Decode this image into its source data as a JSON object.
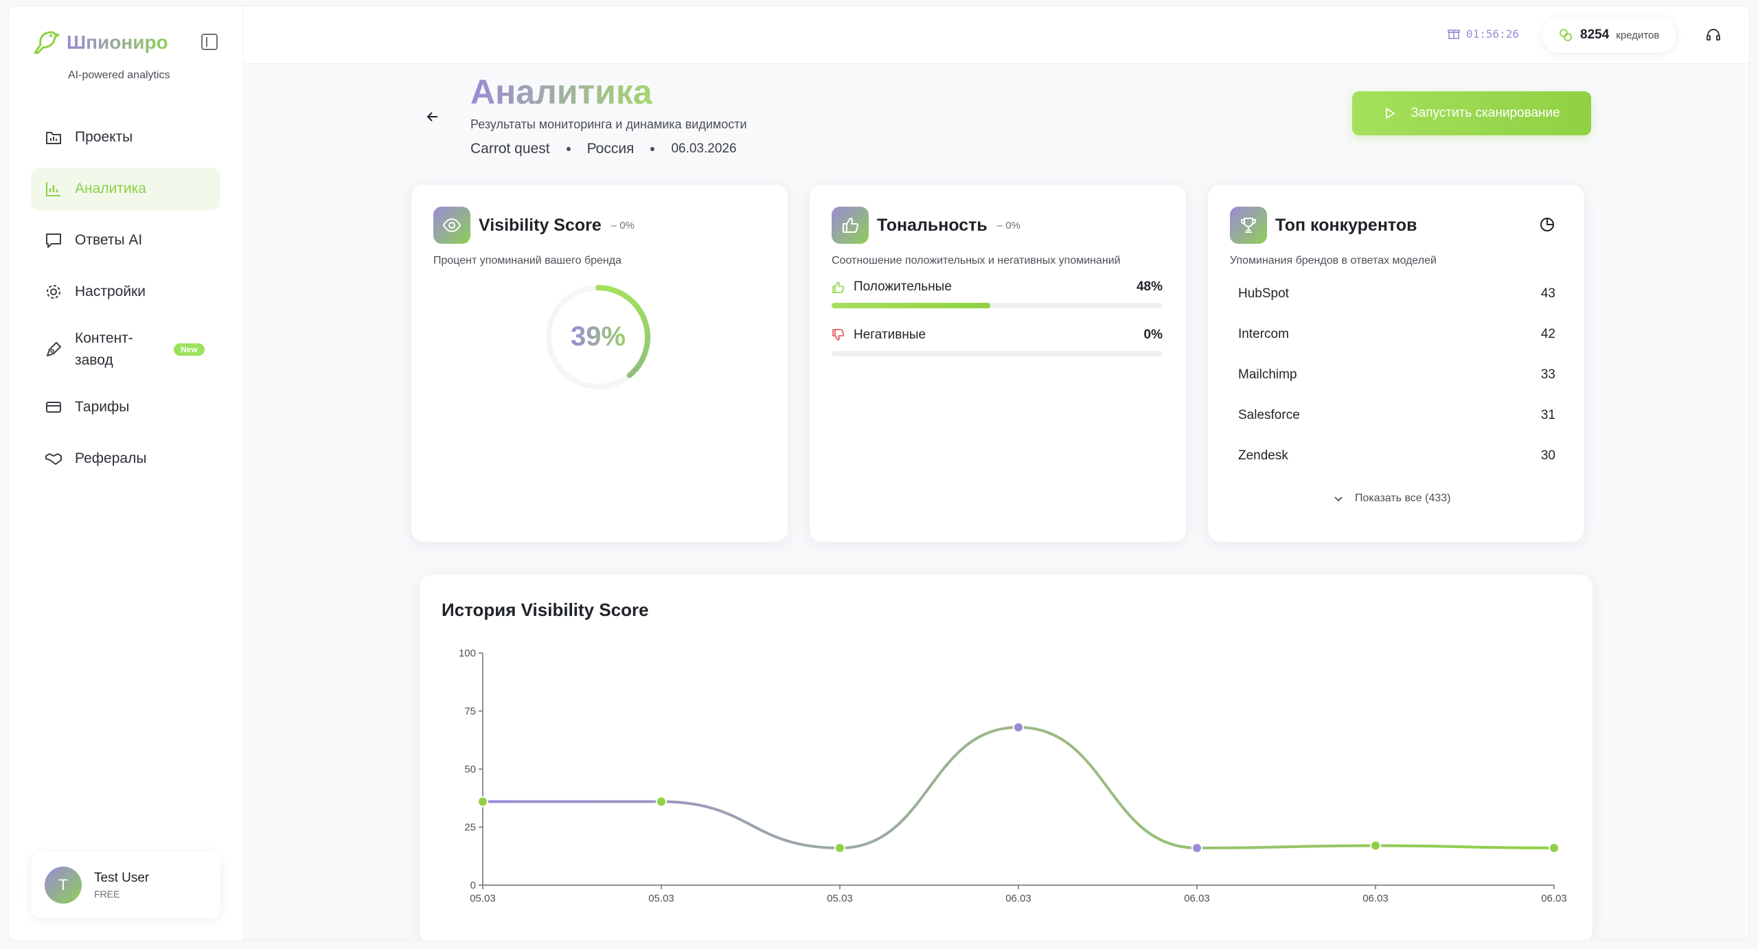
{
  "brand": {
    "name": "Шпиониро",
    "tagline": "AI-powered analytics"
  },
  "sidebar": {
    "items": [
      {
        "label": "Проекты",
        "icon": "folder-icon",
        "active": false
      },
      {
        "label": "Аналитика",
        "icon": "bar-chart-icon",
        "active": true
      },
      {
        "label": "Ответы AI",
        "icon": "message-icon",
        "active": false
      },
      {
        "label": "Настройки",
        "icon": "gear-icon",
        "active": false
      },
      {
        "label": "Контент-завод",
        "icon": "pen-icon",
        "active": false,
        "badge": "New"
      },
      {
        "label": "Тарифы",
        "icon": "credit-card-icon",
        "active": false
      },
      {
        "label": "Рефералы",
        "icon": "handshake-icon",
        "active": false
      }
    ]
  },
  "user": {
    "initial": "T",
    "name": "Test User",
    "plan": "FREE"
  },
  "topbar": {
    "timer": "01:56:26",
    "credits_value": "8254",
    "credits_label": "кредитов"
  },
  "header": {
    "title": "Аналитика",
    "subtitle": "Результаты мониторинга и динамика видимости",
    "project": "Carrot quest",
    "region": "Россия",
    "date": "06.03.2026",
    "scan_button": "Запустить сканирование"
  },
  "visibility": {
    "title": "Visibility Score",
    "delta": "– 0%",
    "desc": "Процент упоминаний вашего бренда",
    "value_text": "39%",
    "value": 39
  },
  "tonality": {
    "title": "Тональность",
    "delta": "– 0%",
    "desc": "Соотношение положительных и негативных упоминаний",
    "positive_label": "Положительные",
    "positive_pct": "48%",
    "positive_value": 48,
    "negative_label": "Негативные",
    "negative_pct": "0%",
    "negative_value": 0
  },
  "competitors": {
    "title": "Топ конкурентов",
    "desc": "Упоминания брендов в ответах моделей",
    "items": [
      {
        "name": "HubSpot",
        "value": "43"
      },
      {
        "name": "Intercom",
        "value": "42"
      },
      {
        "name": "Mailchimp",
        "value": "33"
      },
      {
        "name": "Salesforce",
        "value": "31"
      },
      {
        "name": "Zendesk",
        "value": "30"
      }
    ],
    "show_all": "Показать все (433)"
  },
  "colors": {
    "accent_green": "#8fd143",
    "accent_purple": "#9b8ad6"
  },
  "chart_data": {
    "type": "line",
    "title": "История Visibility Score",
    "categories": [
      "05.03",
      "05.03",
      "05.03",
      "06.03",
      "06.03",
      "06.03",
      "06.03"
    ],
    "values": [
      36,
      36,
      16,
      68,
      16,
      17,
      16
    ],
    "point_colors": [
      "#8fd143",
      "#8fd143",
      "#8fd143",
      "#9b8ad6",
      "#9b8ad6",
      "#8fd143",
      "#8fd143"
    ],
    "ylim": [
      0,
      100
    ],
    "yticks": [
      0,
      25,
      50,
      75,
      100
    ],
    "grid": false
  }
}
